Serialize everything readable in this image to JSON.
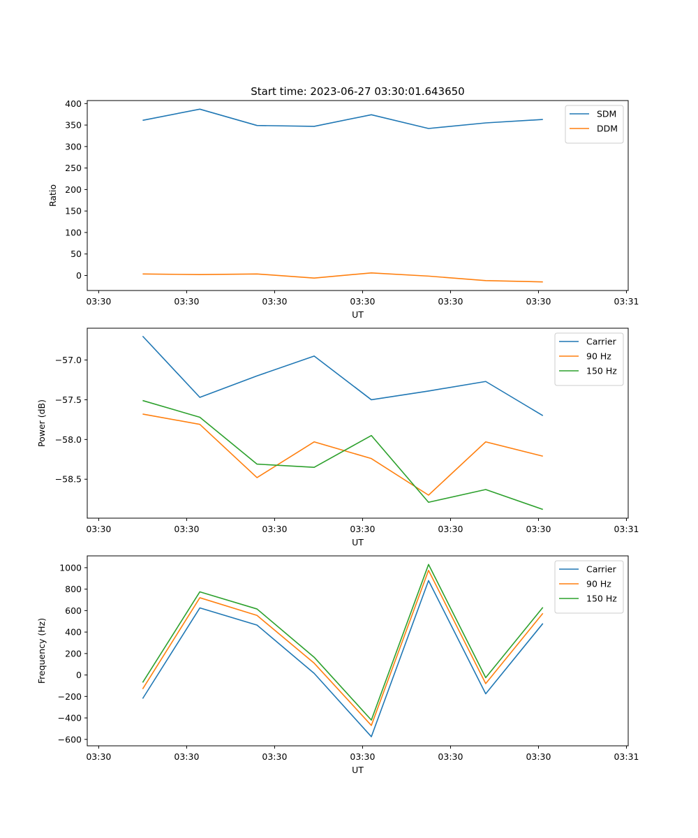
{
  "figure": {
    "title": "Start time: 2023-06-27 03:30:01.643650"
  },
  "chart_data": [
    {
      "type": "line",
      "title": "Start time: 2023-06-27 03:30:01.643650",
      "xlabel": "UT",
      "ylabel": "Ratio",
      "x_tick_labels": [
        "03:30",
        "03:30",
        "03:30",
        "03:30",
        "03:30",
        "03:30",
        "03:31"
      ],
      "x_ticks": [
        0,
        1,
        2,
        3,
        4,
        5,
        6
      ],
      "xlim": [
        -0.13,
        6.02
      ],
      "x": [
        0.5,
        1.15,
        1.8,
        2.45,
        3.1,
        3.75,
        4.4,
        5.05
      ],
      "y_ticks": [
        0,
        50,
        100,
        150,
        200,
        250,
        300,
        350,
        400
      ],
      "ylim": [
        -35,
        407
      ],
      "legend": "top-right",
      "series": [
        {
          "name": "SDM",
          "color": "#1f77b4",
          "values": [
            361,
            387,
            349,
            347,
            374,
            342,
            355,
            363
          ]
        },
        {
          "name": "DDM",
          "color": "#ff7f0e",
          "values": [
            3.5,
            2,
            3.5,
            -6,
            6,
            -1.5,
            -12,
            -15
          ]
        }
      ]
    },
    {
      "type": "line",
      "xlabel": "UT",
      "ylabel": "Power (dB)",
      "x_tick_labels": [
        "03:30",
        "03:30",
        "03:30",
        "03:30",
        "03:30",
        "03:30",
        "03:31"
      ],
      "x_ticks": [
        0,
        1,
        2,
        3,
        4,
        5,
        6
      ],
      "xlim": [
        -0.13,
        6.02
      ],
      "x": [
        0.5,
        1.15,
        1.8,
        2.45,
        3.1,
        3.75,
        4.4,
        5.05
      ],
      "y_ticks": [
        -57.0,
        -57.5,
        -58.0,
        -58.5
      ],
      "y_tick_labels": [
        "−57.0",
        "−57.5",
        "−58.0",
        "−58.5"
      ],
      "ylim": [
        -58.99,
        -56.6
      ],
      "legend": "top-right",
      "series": [
        {
          "name": "Carrier",
          "color": "#1f77b4",
          "values": [
            -56.7,
            -57.47,
            -57.2,
            -56.95,
            -57.5,
            -57.39,
            -57.27,
            -57.7
          ]
        },
        {
          "name": "90 Hz",
          "color": "#ff7f0e",
          "values": [
            -57.68,
            -57.81,
            -58.48,
            -58.03,
            -58.24,
            -58.7,
            -58.03,
            -58.21
          ]
        },
        {
          "name": "150 Hz",
          "color": "#2ca02c",
          "values": [
            -57.51,
            -57.72,
            -58.31,
            -58.35,
            -57.95,
            -58.79,
            -58.63,
            -58.88
          ]
        }
      ]
    },
    {
      "type": "line",
      "xlabel": "UT",
      "ylabel": "Frequency (Hz)",
      "x_tick_labels": [
        "03:30",
        "03:30",
        "03:30",
        "03:30",
        "03:30",
        "03:30",
        "03:31"
      ],
      "x_ticks": [
        0,
        1,
        2,
        3,
        4,
        5,
        6
      ],
      "xlim": [
        -0.13,
        6.02
      ],
      "x": [
        0.5,
        1.15,
        1.8,
        2.45,
        3.1,
        3.75,
        4.4,
        5.05
      ],
      "y_ticks": [
        -600,
        -400,
        -200,
        0,
        200,
        400,
        600,
        800,
        1000
      ],
      "y_tick_labels": [
        "−600",
        "−400",
        "−200",
        "0",
        "200",
        "400",
        "600",
        "800",
        "1000"
      ],
      "ylim": [
        -660,
        1110
      ],
      "legend": "top-right",
      "series": [
        {
          "name": "Carrier",
          "color": "#1f77b4",
          "values": [
            -220,
            625,
            465,
            15,
            -575,
            880,
            -175,
            480
          ]
        },
        {
          "name": "90 Hz",
          "color": "#ff7f0e",
          "values": [
            -130,
            720,
            555,
            110,
            -470,
            975,
            -80,
            575
          ]
        },
        {
          "name": "150 Hz",
          "color": "#2ca02c",
          "values": [
            -70,
            775,
            615,
            165,
            -420,
            1030,
            -25,
            630
          ]
        }
      ]
    }
  ]
}
